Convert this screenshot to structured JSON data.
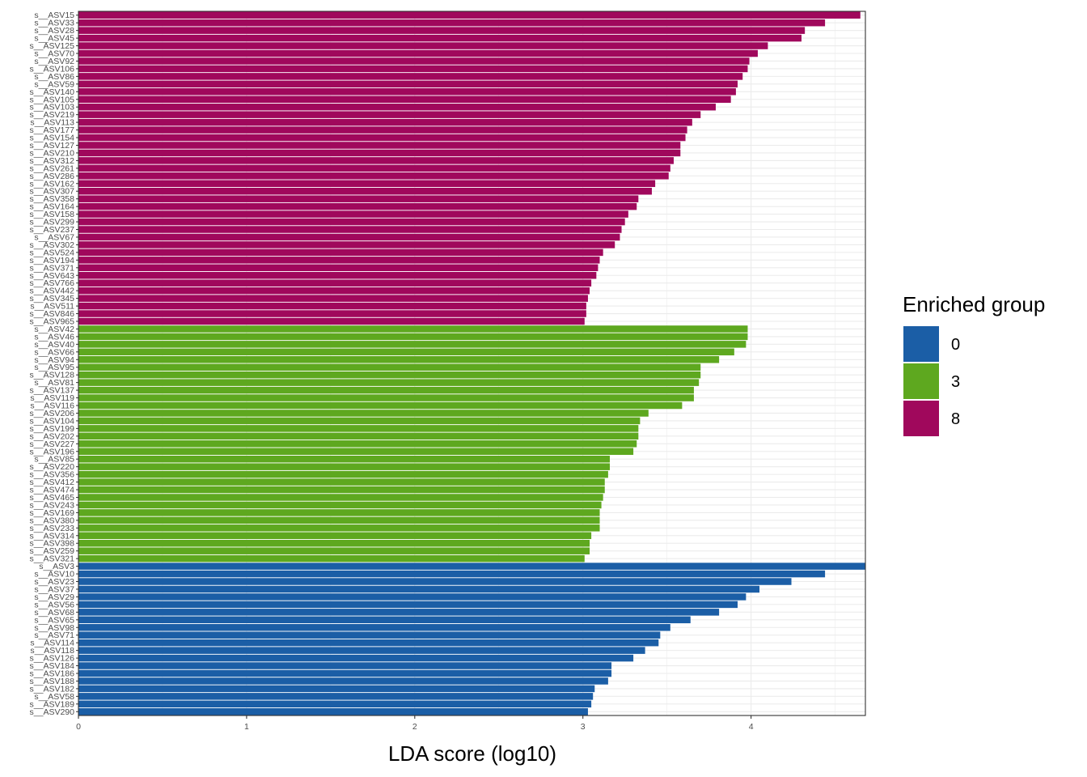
{
  "chart_data": {
    "type": "bar",
    "orientation": "horizontal",
    "xlabel": "LDA score (log10)",
    "xlim": [
      0,
      4.68
    ],
    "xticks": [
      0,
      1,
      2,
      3,
      4
    ],
    "grid": true,
    "legend": {
      "title": "Enriched group",
      "placement": "right",
      "entries": [
        {
          "label": "0",
          "color": "#1B5EA6"
        },
        {
          "label": "3",
          "color": "#5EA81F"
        },
        {
          "label": "8",
          "color": "#A0085C"
        }
      ]
    },
    "series": [
      {
        "name": "8",
        "color": "#A0085C",
        "categories": [
          "s__ASV15",
          "s__ASV33",
          "s__ASV28",
          "s__ASV45",
          "s__ASV125",
          "s__ASV70",
          "s__ASV92",
          "s__ASV106",
          "s__ASV86",
          "s__ASV59",
          "s__ASV140",
          "s__ASV105",
          "s__ASV103",
          "s__ASV219",
          "s__ASV113",
          "s__ASV177",
          "s__ASV154",
          "s__ASV127",
          "s__ASV210",
          "s__ASV312",
          "s__ASV261",
          "s__ASV286",
          "s__ASV162",
          "s__ASV307",
          "s__ASV358",
          "s__ASV164",
          "s__ASV158",
          "s__ASV299",
          "s__ASV237",
          "s__ASV67",
          "s__ASV302",
          "s__ASV524",
          "s__ASV194",
          "s__ASV371",
          "s__ASV643",
          "s__ASV766",
          "s__ASV442",
          "s__ASV345",
          "s__ASV511",
          "s__ASV846",
          "s__ASV965"
        ],
        "values": [
          4.65,
          4.44,
          4.32,
          4.3,
          4.1,
          4.04,
          3.99,
          3.98,
          3.95,
          3.92,
          3.91,
          3.88,
          3.79,
          3.7,
          3.65,
          3.62,
          3.61,
          3.58,
          3.58,
          3.54,
          3.52,
          3.51,
          3.43,
          3.41,
          3.33,
          3.32,
          3.27,
          3.25,
          3.23,
          3.22,
          3.19,
          3.12,
          3.1,
          3.09,
          3.08,
          3.05,
          3.04,
          3.03,
          3.02,
          3.02,
          3.01
        ]
      },
      {
        "name": "3",
        "color": "#5EA81F",
        "categories": [
          "s__ASV42",
          "s__ASV46",
          "s__ASV40",
          "s__ASV66",
          "s__ASV94",
          "s__ASV95",
          "s__ASV128",
          "s__ASV81",
          "s__ASV137",
          "s__ASV119",
          "s__ASV116",
          "s__ASV206",
          "s__ASV104",
          "s__ASV199",
          "s__ASV202",
          "s__ASV227",
          "s__ASV196",
          "s__ASV85",
          "s__ASV220",
          "s__ASV356",
          "s__ASV412",
          "s__ASV474",
          "s__ASV465",
          "s__ASV243",
          "s__ASV169",
          "s__ASV380",
          "s__ASV233",
          "s__ASV314",
          "s__ASV398",
          "s__ASV259",
          "s__ASV321"
        ],
        "values": [
          3.98,
          3.98,
          3.97,
          3.9,
          3.81,
          3.7,
          3.7,
          3.69,
          3.66,
          3.66,
          3.59,
          3.39,
          3.34,
          3.33,
          3.33,
          3.32,
          3.3,
          3.16,
          3.16,
          3.15,
          3.13,
          3.13,
          3.12,
          3.11,
          3.1,
          3.1,
          3.1,
          3.05,
          3.04,
          3.04,
          3.01
        ]
      },
      {
        "name": "0",
        "color": "#1B5EA6",
        "categories": [
          "s__ASV3",
          "s__ASV10",
          "s__ASV23",
          "s__ASV37",
          "s__ASV29",
          "s__ASV56",
          "s__ASV68",
          "s__ASV65",
          "s__ASV98",
          "s__ASV71",
          "s__ASV114",
          "s__ASV118",
          "s__ASV126",
          "s__ASV184",
          "s__ASV186",
          "s__ASV188",
          "s__ASV182",
          "s__ASV58",
          "s__ASV189",
          "s__ASV290"
        ],
        "values": [
          4.68,
          4.44,
          4.24,
          4.05,
          3.97,
          3.92,
          3.81,
          3.64,
          3.52,
          3.46,
          3.45,
          3.37,
          3.3,
          3.17,
          3.17,
          3.15,
          3.07,
          3.06,
          3.05,
          3.03
        ]
      }
    ]
  }
}
